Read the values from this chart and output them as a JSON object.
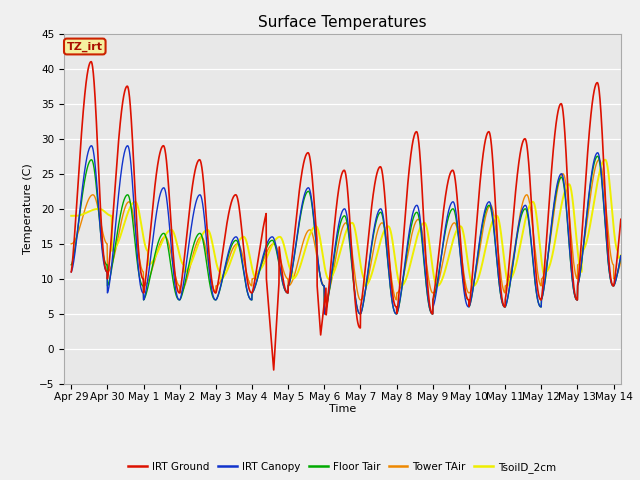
{
  "title": "Surface Temperatures",
  "ylabel": "Temperature (C)",
  "xlabel": "Time",
  "ylim": [
    -5,
    45
  ],
  "fig_bg_color": "#f0f0f0",
  "plot_bg_color": "#e8e8e8",
  "grid_color": "#ffffff",
  "annotation_text": "TZ_irt",
  "annotation_bg": "#f5f0a0",
  "annotation_border": "#cc2200",
  "lines": [
    {
      "label": "IRT Ground",
      "color": "#dd1100",
      "lw": 1.2
    },
    {
      "label": "IRT Canopy",
      "color": "#1133cc",
      "lw": 1.0
    },
    {
      "label": "Floor Tair",
      "color": "#00aa00",
      "lw": 1.0
    },
    {
      "label": "Tower TAir",
      "color": "#ee8800",
      "lw": 1.0
    },
    {
      "label": "TsoilD_2cm",
      "color": "#eeee00",
      "lw": 1.4
    }
  ],
  "tick_labels": [
    "Apr 29",
    "Apr 30",
    "May 1",
    "May 2",
    "May 3",
    "May 4",
    "May 5",
    "May 6",
    "May 7",
    "May 8",
    "May 9",
    "May 10",
    "May 11",
    "May 12",
    "May 13",
    "May 14"
  ],
  "yticks": [
    -5,
    0,
    5,
    10,
    15,
    20,
    25,
    30,
    35,
    40,
    45
  ]
}
